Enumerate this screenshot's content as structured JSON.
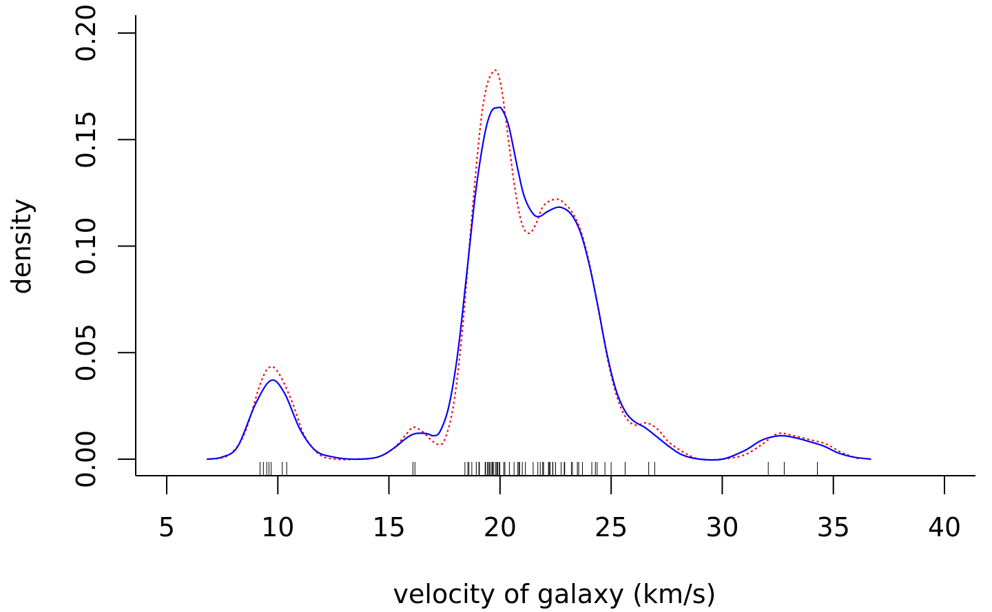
{
  "chart_data": {
    "type": "line",
    "xlabel": "velocity of galaxy (km/s)",
    "ylabel": "density",
    "xlim": [
      5,
      40
    ],
    "ylim": [
      0,
      0.2
    ],
    "x_ticks": [
      "5",
      "10",
      "15",
      "20",
      "25",
      "30",
      "35",
      "40"
    ],
    "y_ticks": [
      "0.00",
      "0.05",
      "0.10",
      "0.15",
      "0.20"
    ],
    "grid": false,
    "series": [
      {
        "color": "#0000ff",
        "style": "solid",
        "x": [
          6.8,
          7.5,
          8.2,
          9.0,
          9.7,
          10.3,
          11.0,
          11.7,
          12.5,
          13.5,
          14.5,
          15.2,
          15.8,
          16.2,
          16.7,
          17.0,
          17.3,
          17.7,
          18.1,
          18.5,
          18.9,
          19.3,
          19.6,
          19.9,
          20.1,
          20.4,
          20.8,
          21.1,
          21.5,
          21.8,
          22.1,
          22.5,
          22.8,
          23.2,
          23.6,
          24.0,
          24.4,
          24.8,
          25.2,
          25.6,
          26.0,
          26.5,
          27.0,
          27.6,
          28.2,
          29.0,
          30.0,
          31.0,
          31.8,
          32.6,
          33.3,
          34.0,
          34.6,
          35.2,
          35.9,
          36.7
        ],
        "y": [
          0.0,
          0.001,
          0.006,
          0.026,
          0.037,
          0.031,
          0.014,
          0.004,
          0.001,
          0.0,
          0.001,
          0.005,
          0.01,
          0.012,
          0.012,
          0.011,
          0.013,
          0.025,
          0.05,
          0.087,
          0.125,
          0.152,
          0.163,
          0.165,
          0.164,
          0.156,
          0.136,
          0.123,
          0.115,
          0.114,
          0.116,
          0.118,
          0.118,
          0.115,
          0.107,
          0.092,
          0.072,
          0.05,
          0.033,
          0.023,
          0.018,
          0.015,
          0.011,
          0.006,
          0.002,
          0.0,
          0.0,
          0.004,
          0.009,
          0.011,
          0.01,
          0.008,
          0.006,
          0.003,
          0.001,
          0.0
        ]
      },
      {
        "color": "#ff0000",
        "style": "dotted",
        "x": [
          7.0,
          7.8,
          8.5,
          9.2,
          9.6,
          10.0,
          10.6,
          11.2,
          11.9,
          12.6,
          13.5,
          14.5,
          15.2,
          15.8,
          16.1,
          16.5,
          16.9,
          17.2,
          17.5,
          17.9,
          18.3,
          18.7,
          19.1,
          19.4,
          19.7,
          19.9,
          20.1,
          20.4,
          20.7,
          21.0,
          21.3,
          21.6,
          21.9,
          22.2,
          22.6,
          22.9,
          23.3,
          23.7,
          24.1,
          24.5,
          24.9,
          25.3,
          25.7,
          26.1,
          26.6,
          27.1,
          27.6,
          28.3,
          29.0,
          30.0,
          31.0,
          31.8,
          32.5,
          33.2,
          34.0,
          34.7,
          35.4,
          36.2
        ],
        "y": [
          0.0,
          0.002,
          0.012,
          0.035,
          0.043,
          0.041,
          0.028,
          0.011,
          0.002,
          0.0,
          0.0,
          0.001,
          0.005,
          0.012,
          0.015,
          0.013,
          0.009,
          0.007,
          0.009,
          0.025,
          0.06,
          0.11,
          0.155,
          0.175,
          0.182,
          0.181,
          0.172,
          0.148,
          0.125,
          0.11,
          0.106,
          0.11,
          0.118,
          0.121,
          0.122,
          0.12,
          0.115,
          0.105,
          0.088,
          0.066,
          0.044,
          0.028,
          0.019,
          0.016,
          0.017,
          0.014,
          0.008,
          0.003,
          0.0,
          0.0,
          0.002,
          0.007,
          0.012,
          0.011,
          0.009,
          0.007,
          0.003,
          0.0
        ]
      }
    ],
    "rug": [
      9.2,
      9.35,
      9.5,
      9.6,
      9.7,
      10.2,
      10.4,
      16.08,
      16.17,
      18.42,
      18.55,
      18.6,
      18.73,
      18.93,
      19.05,
      19.07,
      19.33,
      19.35,
      19.44,
      19.47,
      19.53,
      19.55,
      19.63,
      19.66,
      19.7,
      19.79,
      19.85,
      19.86,
      19.9,
      19.97,
      19.99,
      20.17,
      20.22,
      20.42,
      20.63,
      20.8,
      20.85,
      20.88,
      21.0,
      21.14,
      21.49,
      21.7,
      21.81,
      21.92,
      21.96,
      22.18,
      22.21,
      22.25,
      22.37,
      22.38,
      22.5,
      22.75,
      22.89,
      22.91,
      23.21,
      23.26,
      23.48,
      23.54,
      23.71,
      24.13,
      24.29,
      24.37,
      24.72,
      25.0,
      25.63,
      26.69,
      26.96,
      32.07,
      32.79,
      34.28
    ]
  }
}
